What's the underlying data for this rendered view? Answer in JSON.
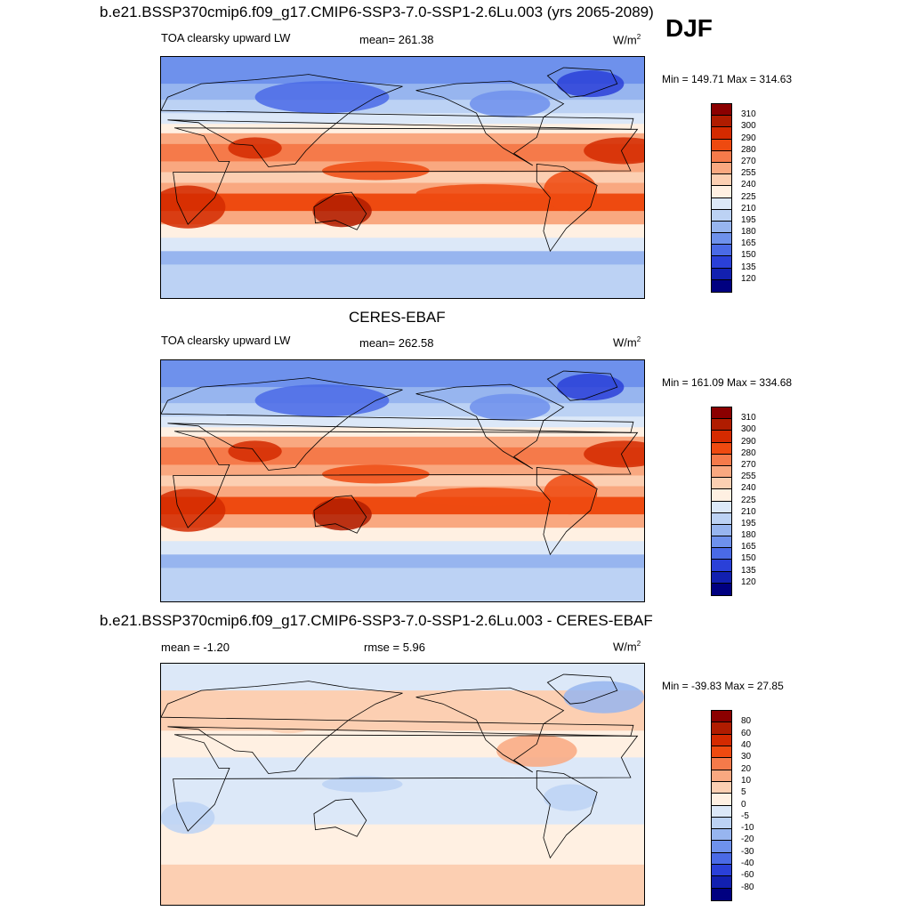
{
  "season": "DJF",
  "panels": [
    {
      "title": "b.e21.BSSP370cmip6.f09_g17.CMIP6-SSP3-7.0-SSP1-2.6Lu.003 (yrs 2065-2089)",
      "left": "TOA clearsky upward LW",
      "middle": "mean= 261.38",
      "units": "W/m",
      "units_sup": "2",
      "minmax": "Min = 149.71 Max = 314.63"
    },
    {
      "title": "CERES-EBAF",
      "left": "TOA clearsky upward LW",
      "middle": "mean= 262.58",
      "units": "W/m",
      "units_sup": "2",
      "minmax": "Min = 161.09 Max = 334.68"
    },
    {
      "title": "b.e21.BSSP370cmip6.f09_g17.CMIP6-SSP3-7.0-SSP1-2.6Lu.003 - CERES-EBAF",
      "left": "mean =  -1.20",
      "middle": "rmse =   5.96",
      "units": "W/m",
      "units_sup": "2",
      "minmax": "Min = -39.83 Max =  27.85"
    }
  ],
  "chart_data": [
    {
      "type": "heatmap",
      "colorbar": {
        "levels": [
          "310",
          "300",
          "290",
          "280",
          "270",
          "255",
          "240",
          "225",
          "210",
          "195",
          "180",
          "165",
          "150",
          "135",
          "120"
        ],
        "colors": [
          "#8b0000",
          "#b01c00",
          "#d42a00",
          "#ee4a10",
          "#f57a4a",
          "#f9a880",
          "#fccfb2",
          "#fff0e2",
          "#dce8f8",
          "#bcd2f4",
          "#97b5ef",
          "#6e91ec",
          "#4a6ae6",
          "#2a40d8",
          "#1220b0",
          "#000080"
        ]
      }
    },
    {
      "type": "heatmap",
      "colorbar": {
        "levels": [
          "310",
          "300",
          "290",
          "280",
          "270",
          "255",
          "240",
          "225",
          "210",
          "195",
          "180",
          "165",
          "150",
          "135",
          "120"
        ],
        "colors": [
          "#8b0000",
          "#b01c00",
          "#d42a00",
          "#ee4a10",
          "#f57a4a",
          "#f9a880",
          "#fccfb2",
          "#fff0e2",
          "#dce8f8",
          "#bcd2f4",
          "#97b5ef",
          "#6e91ec",
          "#4a6ae6",
          "#2a40d8",
          "#1220b0",
          "#000080"
        ]
      }
    },
    {
      "type": "heatmap",
      "colorbar": {
        "levels": [
          "80",
          "60",
          "40",
          "30",
          "20",
          "10",
          "5",
          "0",
          "-5",
          "-10",
          "-20",
          "-30",
          "-40",
          "-60",
          "-80"
        ],
        "colors": [
          "#8b0000",
          "#b01c00",
          "#d42a00",
          "#ee4a10",
          "#f57a4a",
          "#f9a880",
          "#fccfb2",
          "#fff0e2",
          "#dce8f8",
          "#bcd2f4",
          "#97b5ef",
          "#6e91ec",
          "#4a6ae6",
          "#2a40d8",
          "#1220b0",
          "#000080"
        ]
      }
    }
  ]
}
